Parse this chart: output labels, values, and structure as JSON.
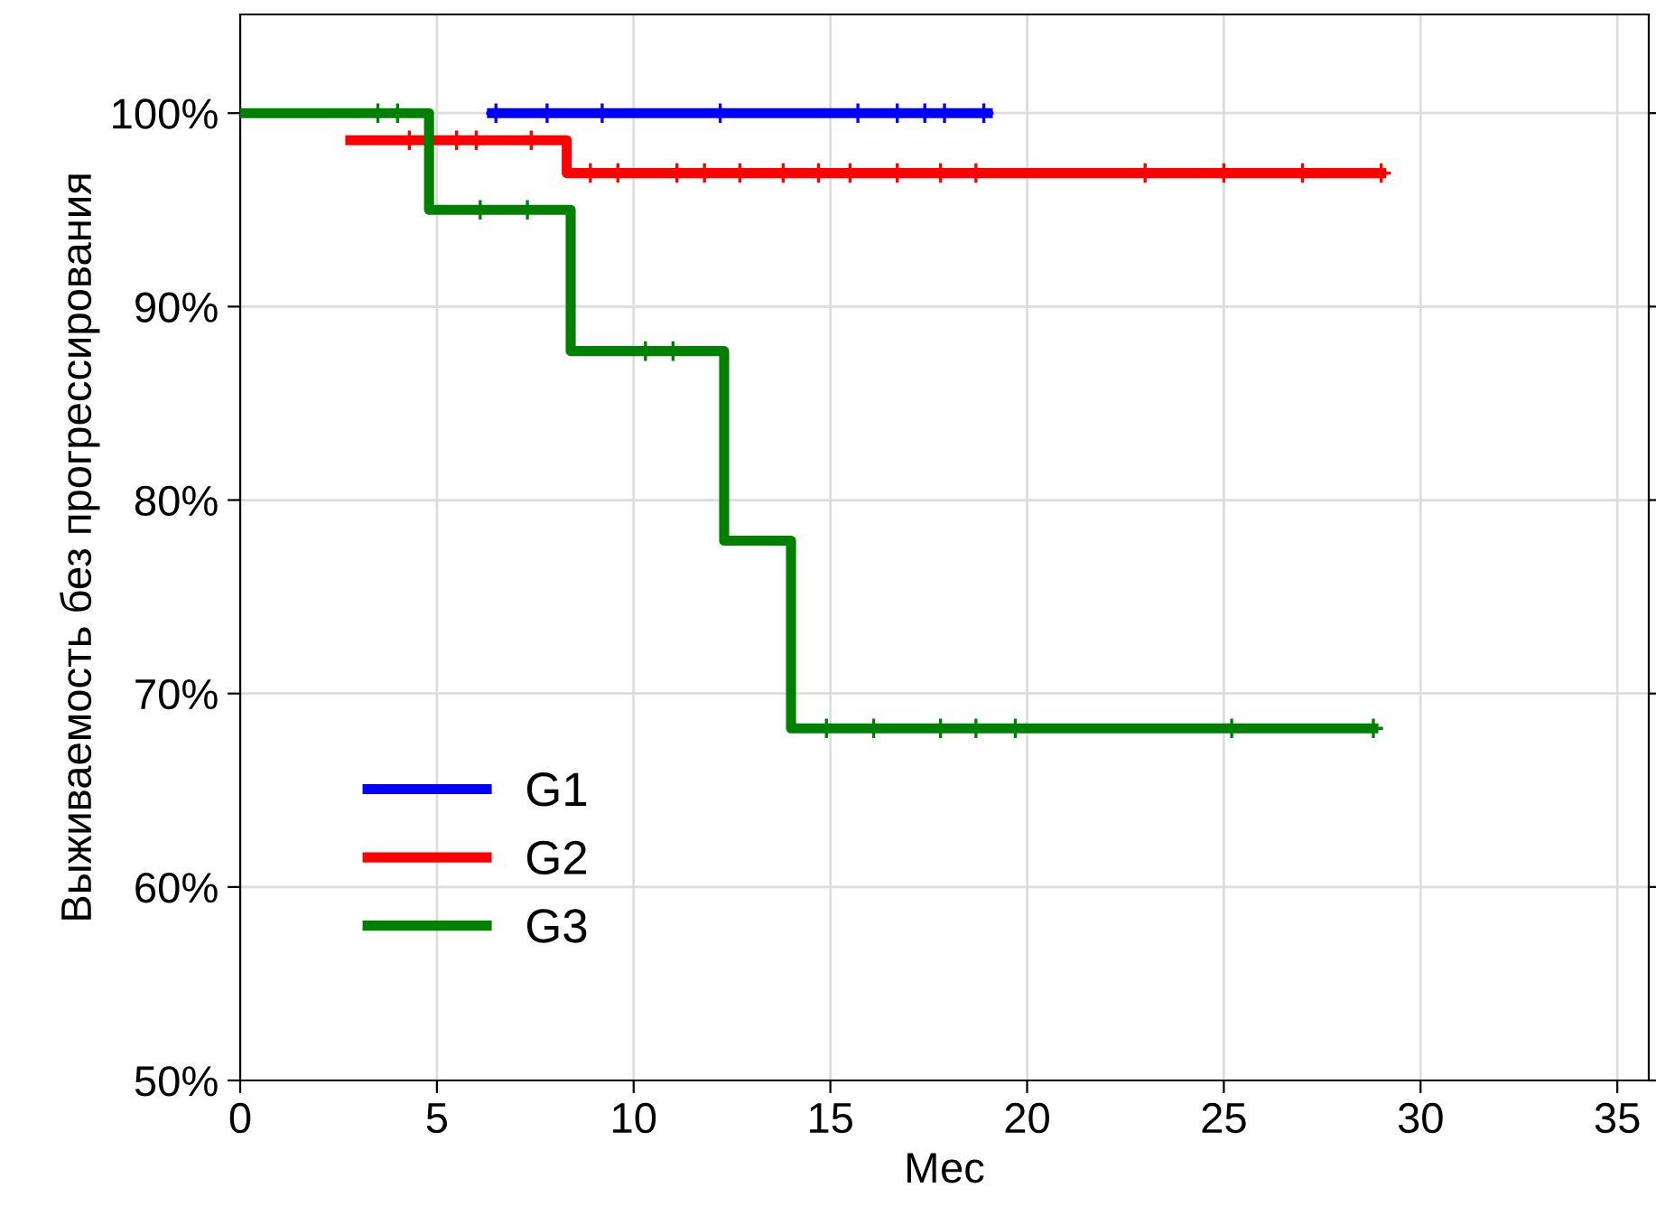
{
  "chart_data": {
    "type": "step",
    "xlabel": "Мес",
    "ylabel": "Выживаемость без прогрессирования",
    "xlim": [
      0,
      35.8
    ],
    "xticks": [
      0,
      5,
      10,
      15,
      20,
      25,
      30,
      35
    ],
    "ylim": [
      50,
      105.1
    ],
    "yticks": [
      {
        "value": 50,
        "label": "50%"
      },
      {
        "value": 60,
        "label": "60%"
      },
      {
        "value": 70,
        "label": "70%"
      },
      {
        "value": 80,
        "label": "80%"
      },
      {
        "value": 90,
        "label": "90%"
      },
      {
        "value": 100,
        "label": "100%"
      }
    ],
    "grid": true,
    "legend": "bottom left",
    "line_style": "solid",
    "series": [
      {
        "name": "G1",
        "color": "#0000ff",
        "x": [
          6.4,
          19.0
        ],
        "values": [
          100,
          100
        ]
      },
      {
        "name": "G2",
        "color": "#ff0000",
        "x": [
          2.8,
          8.3,
          29.0
        ],
        "values": [
          98.6,
          96.9,
          96.9
        ]
      },
      {
        "name": "G3",
        "color": "#008000",
        "x": [
          0,
          4.8,
          8.4,
          12.3,
          14.0,
          28.8
        ],
        "values": [
          100,
          95,
          87.7,
          77.9,
          68.2,
          68.2
        ]
      },
      {
        "color": "#0000ff",
        "type": "scatter",
        "marker": "cross",
        "x": [
          6.5,
          7.8,
          9.2,
          12.2,
          15.7,
          16.7,
          17.4,
          17.9,
          18.9
        ],
        "values": [
          100,
          100,
          100,
          100,
          100,
          100,
          100,
          100,
          100
        ]
      },
      {
        "color": "#ff0000",
        "type": "scatter",
        "marker": "cross",
        "x": [
          4.3,
          5.5,
          6.0,
          7.4,
          8.9,
          9.6,
          11.1,
          11.8,
          12.7,
          13.8,
          14.7,
          15.5,
          16.7,
          17.8,
          18.7,
          23,
          25,
          27,
          29
        ],
        "values": [
          98.6,
          98.6,
          98.6,
          98.6,
          96.9,
          96.9,
          96.9,
          96.9,
          96.9,
          96.9,
          96.9,
          96.9,
          96.9,
          96.9,
          96.9,
          96.9,
          96.9,
          96.9,
          96.9
        ]
      },
      {
        "color": "#008000",
        "type": "scatter",
        "marker": "cross",
        "x": [
          3.5,
          4.0,
          6.1,
          7.3,
          10.3,
          11.0,
          14.9,
          16.1,
          17.8,
          18.7,
          19.7,
          25.2,
          28.8
        ],
        "values": [
          100,
          100,
          95,
          95,
          87.7,
          87.7,
          68.2,
          68.2,
          68.2,
          68.2,
          68.2,
          68.2,
          68.2
        ]
      }
    ]
  }
}
